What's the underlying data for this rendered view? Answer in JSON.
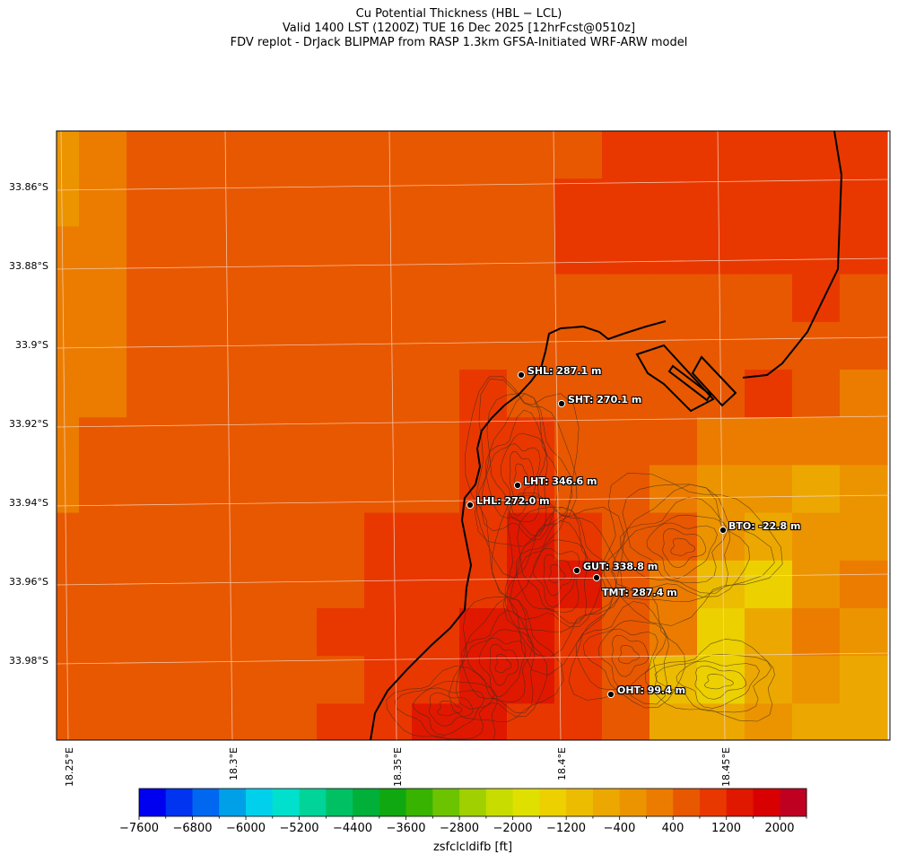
{
  "header": {
    "title": "Cu Potential Thickness (HBL − LCL)",
    "subtitle": "Valid 1400 LST (1200Z) TUE 16 Dec 2025 [12hrFcst@0510z]",
    "source": "FDV replot - DrJack BLIPMAP from RASP 1.3km GFSA-Initiated WRF-ARW model"
  },
  "axes": {
    "lat_labels": [
      "33.86°S",
      "33.88°S",
      "33.9°S",
      "33.92°S",
      "33.94°S",
      "33.96°S",
      "33.98°S"
    ],
    "lon_labels": [
      "18.25°E",
      "18.3°E",
      "18.35°E",
      "18.4°E",
      "18.45°E"
    ]
  },
  "stations": [
    {
      "name": "SHL",
      "label": "SHL: 287.1 m",
      "value_m": 287.1
    },
    {
      "name": "SHT",
      "label": "SHT: 270.1 m",
      "value_m": 270.1
    },
    {
      "name": "LHT",
      "label": "LHT: 346.6 m",
      "value_m": 346.6
    },
    {
      "name": "LHL",
      "label": "LHL: 272.0 m",
      "value_m": 272.0
    },
    {
      "name": "BTO",
      "label": "BTO: -22.8 m",
      "value_m": -22.8
    },
    {
      "name": "GUT",
      "label": "GUT: 338.8 m",
      "value_m": 338.8
    },
    {
      "name": "TMT",
      "label": "TMT: 287.4 m",
      "value_m": 287.4
    },
    {
      "name": "OHT",
      "label": "OHT: 99.4 m",
      "value_m": 99.4
    }
  ],
  "colorbar": {
    "label": "zsfclcldifb [ft]",
    "min": -7600,
    "max": 2400,
    "step": 400,
    "tick_labels": [
      "−7600",
      "−6800",
      "−6000",
      "−5200",
      "−4400",
      "−3600",
      "−2800",
      "−2000",
      "−1200",
      "−400",
      "400",
      "1200",
      "2000"
    ],
    "colors": [
      "#0000f0",
      "#0034f0",
      "#0068f0",
      "#00a0e8",
      "#00d0ec",
      "#00e0cc",
      "#00d498",
      "#00c064",
      "#00b038",
      "#10a810",
      "#38b400",
      "#6cc400",
      "#a0d000",
      "#c8dc00",
      "#e0e000",
      "#ecd000",
      "#ecbc00",
      "#eca800",
      "#ec9400",
      "#ec7c00",
      "#e85800",
      "#e83800",
      "#e01800",
      "#d80000",
      "#c00020"
    ]
  },
  "field": {
    "cols": 18,
    "rows": 13,
    "levels": [
      [
        18,
        19,
        20,
        20,
        20,
        20,
        20,
        20,
        20,
        20,
        20,
        20,
        21,
        21,
        21,
        21,
        21,
        21
      ],
      [
        18,
        19,
        20,
        20,
        20,
        20,
        20,
        20,
        20,
        20,
        20,
        21,
        21,
        21,
        21,
        21,
        21,
        21
      ],
      [
        19,
        19,
        20,
        20,
        20,
        20,
        20,
        20,
        20,
        20,
        20,
        21,
        21,
        21,
        21,
        21,
        21,
        21
      ],
      [
        19,
        19,
        20,
        20,
        20,
        20,
        20,
        20,
        20,
        20,
        20,
        20,
        20,
        20,
        20,
        20,
        21,
        20
      ],
      [
        19,
        19,
        20,
        20,
        20,
        20,
        20,
        20,
        20,
        20,
        20,
        20,
        20,
        20,
        20,
        20,
        20,
        20
      ],
      [
        19,
        19,
        20,
        20,
        20,
        20,
        20,
        20,
        20,
        21,
        20,
        20,
        20,
        20,
        20,
        21,
        20,
        19
      ],
      [
        19,
        20,
        20,
        20,
        20,
        20,
        20,
        20,
        20,
        21,
        21,
        20,
        20,
        20,
        19,
        19,
        19,
        19
      ],
      [
        19,
        20,
        20,
        20,
        20,
        20,
        20,
        20,
        20,
        21,
        21,
        20,
        20,
        19,
        18,
        18,
        17,
        18
      ],
      [
        20,
        20,
        20,
        20,
        20,
        20,
        20,
        21,
        21,
        21,
        22,
        21,
        20,
        20,
        18,
        17,
        18,
        18
      ],
      [
        20,
        20,
        20,
        20,
        20,
        20,
        20,
        21,
        21,
        21,
        22,
        22,
        20,
        19,
        16,
        15,
        18,
        19
      ],
      [
        20,
        20,
        20,
        20,
        20,
        20,
        21,
        21,
        21,
        22,
        22,
        21,
        20,
        19,
        15,
        17,
        19,
        18
      ],
      [
        20,
        20,
        20,
        20,
        20,
        20,
        20,
        21,
        21,
        22,
        22,
        21,
        20,
        16,
        15,
        17,
        18,
        17
      ],
      [
        20,
        20,
        20,
        20,
        20,
        20,
        21,
        21,
        22,
        22,
        21,
        21,
        20,
        17,
        17,
        18,
        17,
        17
      ]
    ]
  }
}
